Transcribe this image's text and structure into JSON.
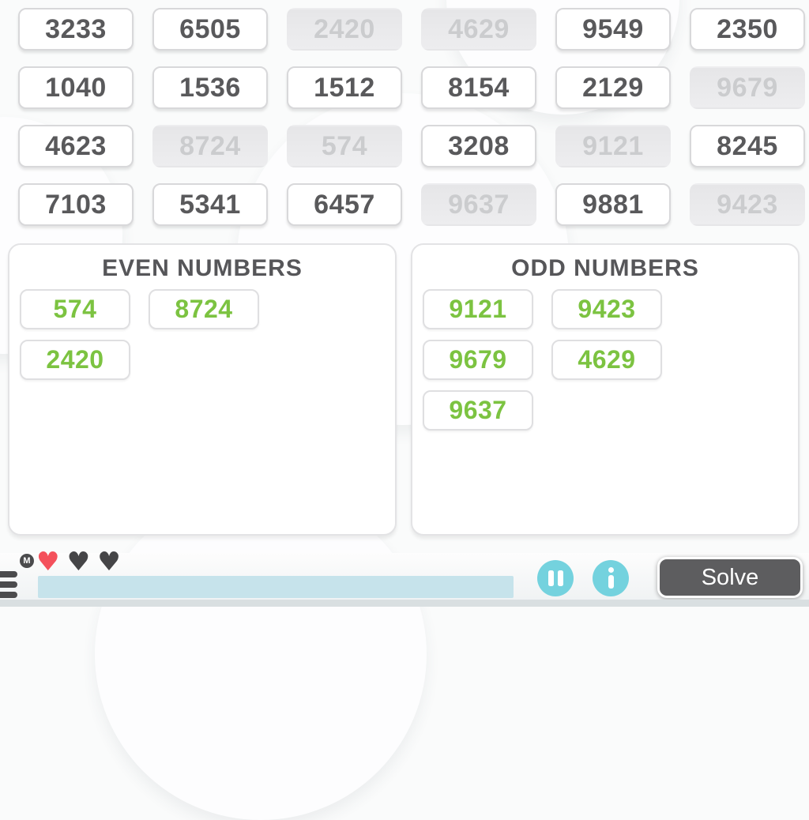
{
  "board": {
    "tiles": [
      {
        "label": "3233",
        "state": "active"
      },
      {
        "label": "6505",
        "state": "active"
      },
      {
        "label": "2420",
        "state": "used"
      },
      {
        "label": "4629",
        "state": "used"
      },
      {
        "label": "9549",
        "state": "active"
      },
      {
        "label": "2350",
        "state": "active"
      },
      {
        "label": "1040",
        "state": "active"
      },
      {
        "label": "1536",
        "state": "active"
      },
      {
        "label": "1512",
        "state": "active"
      },
      {
        "label": "8154",
        "state": "active"
      },
      {
        "label": "2129",
        "state": "active"
      },
      {
        "label": "9679",
        "state": "used"
      },
      {
        "label": "4623",
        "state": "active"
      },
      {
        "label": "8724",
        "state": "used"
      },
      {
        "label": "574",
        "state": "used"
      },
      {
        "label": "3208",
        "state": "active"
      },
      {
        "label": "9121",
        "state": "used"
      },
      {
        "label": "8245",
        "state": "active"
      },
      {
        "label": "7103",
        "state": "active"
      },
      {
        "label": "5341",
        "state": "active"
      },
      {
        "label": "6457",
        "state": "active"
      },
      {
        "label": "9637",
        "state": "used"
      },
      {
        "label": "9881",
        "state": "active"
      },
      {
        "label": "9423",
        "state": "used"
      }
    ]
  },
  "panels": {
    "even": {
      "title": "EVEN NUMBERS",
      "numbers": [
        "574",
        "8724",
        "2420"
      ]
    },
    "odd": {
      "title": "ODD NUMBERS",
      "numbers": [
        "9121",
        "9423",
        "9679",
        "4629",
        "9637"
      ]
    }
  },
  "hud": {
    "menu_monogram": "M",
    "hearts": [
      {
        "state": "active",
        "color": "#f4515c"
      },
      {
        "state": "inactive",
        "color": "#454547"
      },
      {
        "state": "inactive",
        "color": "#454547"
      }
    ],
    "progress_percent": 100,
    "solve_label": "Solve"
  },
  "icons": {
    "heart": "♥",
    "pause": "pause-icon",
    "info": "info-icon",
    "menu": "hamburger-menu-icon"
  },
  "colors": {
    "number_text": "#59595b",
    "used_tile_bg": "#eaeaec",
    "used_tile_text": "#cbccce",
    "sorted_green": "#7cc341",
    "accent_teal": "#74d2de",
    "progress_fill": "#c6e3eb",
    "heart_red": "#f4515c",
    "heart_dark": "#454547",
    "solve_bg": "#5d5d5f"
  }
}
